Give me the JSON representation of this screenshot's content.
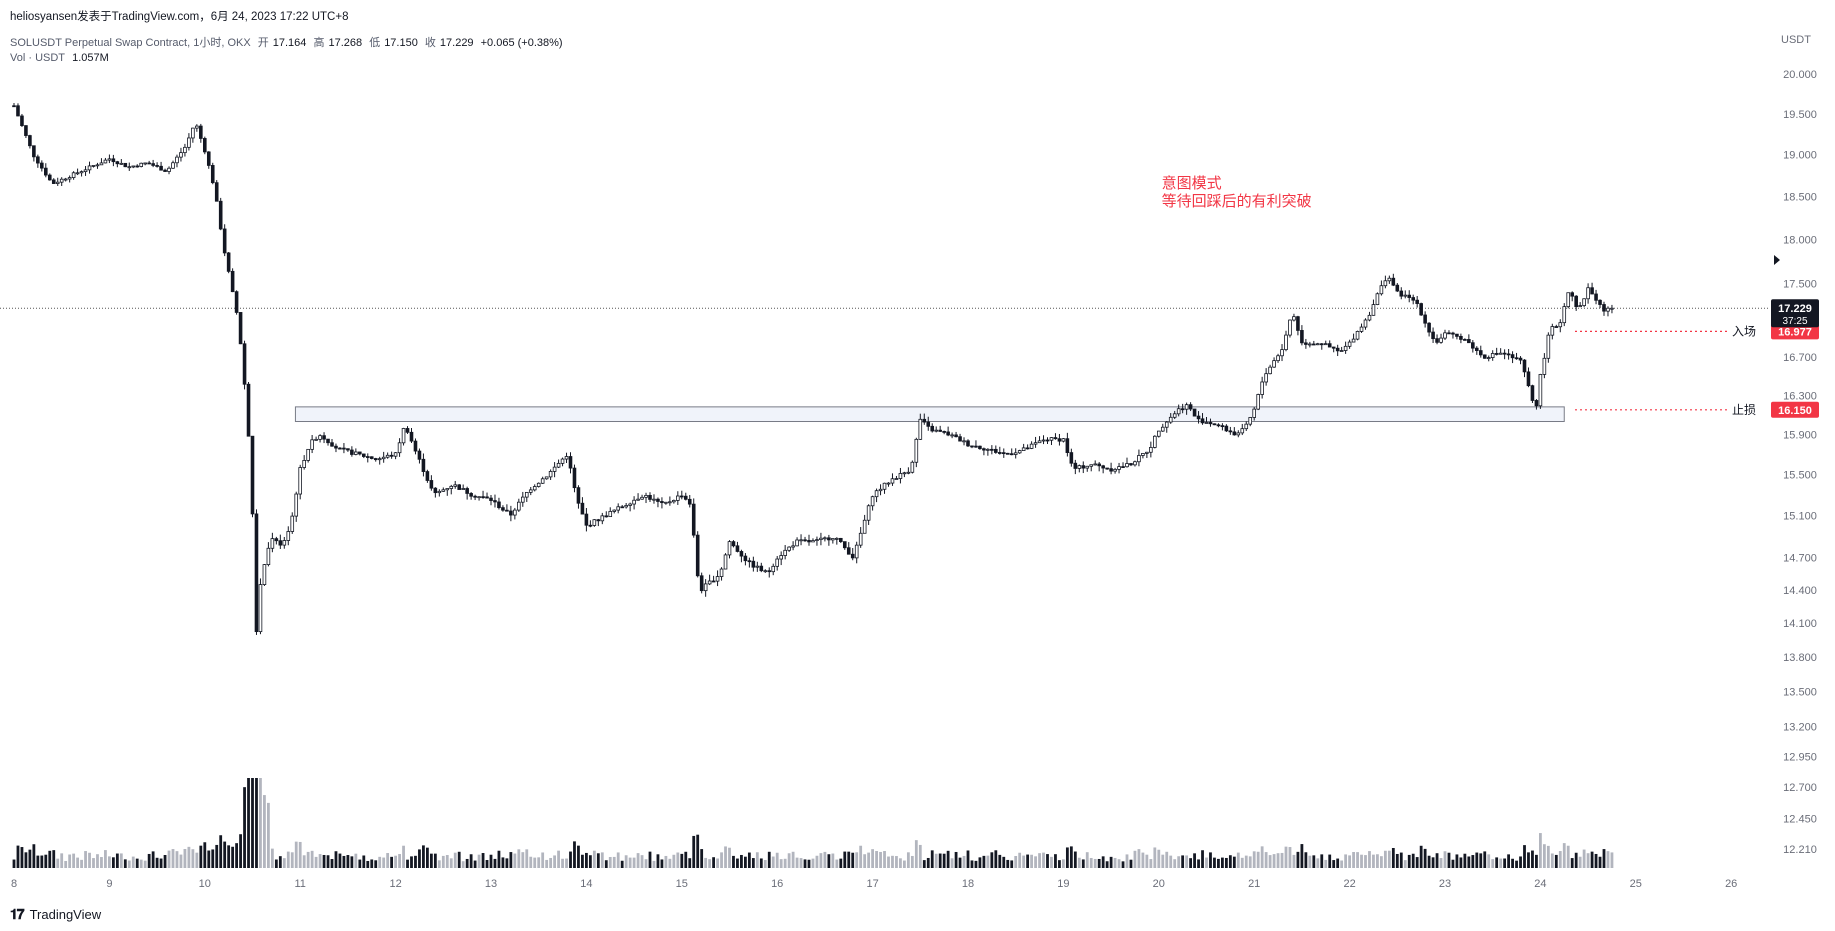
{
  "header": {
    "publisher": "heliosyansen发表于TradingView.com，6月 24, 2023 17:22 UTC+8",
    "symbol_line": "SOLUSDT Perpetual Swap Contract, 1小时, OKX",
    "open_label": "开",
    "open": "17.164",
    "high_label": "高",
    "high": "17.268",
    "low_label": "低",
    "low": "17.150",
    "close_label": "收",
    "close": "17.229",
    "change": "+0.065 (+0.38%)",
    "vol_label": "Vol · USDT",
    "vol_value": "1.057M"
  },
  "currency": "USDT",
  "footer": {
    "logo_mark": "𝟏𝟕",
    "logo_text": "TradingView"
  },
  "colors": {
    "candle": "#131722",
    "volume_up": "#b2b5be",
    "volume_down": "#131722",
    "annotation": "#f23645",
    "zone_fill": "#f0f3fa",
    "zone_border": "#787b86",
    "last_price_bg": "#131722",
    "level_bg": "#f23645"
  },
  "chart_data": {
    "type": "candlestick",
    "price_scale": {
      "ticks": [
        "20.000",
        "19.500",
        "19.000",
        "18.500",
        "18.000",
        "17.500",
        "16.700",
        "16.300",
        "15.900",
        "15.500",
        "15.100",
        "14.700",
        "14.400",
        "14.100",
        "13.800",
        "13.500",
        "13.200",
        "12.950",
        "12.700",
        "12.450",
        "12.210"
      ],
      "log": true
    },
    "time_ticks": [
      "8",
      "9",
      "10",
      "11",
      "12",
      "13",
      "14",
      "15",
      "16",
      "17",
      "18",
      "19",
      "20",
      "21",
      "22",
      "23",
      "24",
      "25",
      "26"
    ],
    "last_price": "17.229",
    "countdown": "37:25",
    "levels": [
      {
        "label": "入场",
        "price": "16.977",
        "value": 16.977
      },
      {
        "label": "止损",
        "price": "16.150",
        "value": 16.15
      }
    ],
    "zone": {
      "top": 16.18,
      "bottom": 16.03,
      "from_day": 10.95,
      "to_day": 24.25
    },
    "annotation": {
      "line1": "意图模式",
      "line2": "等待回踩后的有利突破",
      "day": 20.03,
      "price": 18.6
    },
    "price_path": [
      [
        8.0,
        19.6
      ],
      [
        8.2,
        19.0
      ],
      [
        8.4,
        18.65
      ],
      [
        8.6,
        18.75
      ],
      [
        8.8,
        18.85
      ],
      [
        9.0,
        18.95
      ],
      [
        9.2,
        18.85
      ],
      [
        9.4,
        18.9
      ],
      [
        9.6,
        18.8
      ],
      [
        9.8,
        19.1
      ],
      [
        9.9,
        19.4
      ],
      [
        10.0,
        19.05
      ],
      [
        10.1,
        18.6
      ],
      [
        10.2,
        17.9
      ],
      [
        10.3,
        17.35
      ],
      [
        10.35,
        17.1
      ],
      [
        10.4,
        16.6
      ],
      [
        10.45,
        16.05
      ],
      [
        10.5,
        15.1
      ],
      [
        10.52,
        13.6
      ],
      [
        10.55,
        14.2
      ],
      [
        10.6,
        14.55
      ],
      [
        10.7,
        14.9
      ],
      [
        10.8,
        14.8
      ],
      [
        10.9,
        15.0
      ],
      [
        11.0,
        15.55
      ],
      [
        11.1,
        15.8
      ],
      [
        11.2,
        15.9
      ],
      [
        11.4,
        15.75
      ],
      [
        11.6,
        15.7
      ],
      [
        11.8,
        15.65
      ],
      [
        12.0,
        15.7
      ],
      [
        12.1,
        16.0
      ],
      [
        12.2,
        15.75
      ],
      [
        12.4,
        15.3
      ],
      [
        12.6,
        15.4
      ],
      [
        12.8,
        15.3
      ],
      [
        13.0,
        15.25
      ],
      [
        13.2,
        15.1
      ],
      [
        13.4,
        15.35
      ],
      [
        13.6,
        15.5
      ],
      [
        13.8,
        15.7
      ],
      [
        13.9,
        15.25
      ],
      [
        14.0,
        15.0
      ],
      [
        14.2,
        15.1
      ],
      [
        14.4,
        15.2
      ],
      [
        14.6,
        15.3
      ],
      [
        14.8,
        15.2
      ],
      [
        15.0,
        15.3
      ],
      [
        15.1,
        15.2
      ],
      [
        15.15,
        14.6
      ],
      [
        15.2,
        14.4
      ],
      [
        15.4,
        14.55
      ],
      [
        15.5,
        14.85
      ],
      [
        15.7,
        14.65
      ],
      [
        15.9,
        14.55
      ],
      [
        16.0,
        14.7
      ],
      [
        16.2,
        14.85
      ],
      [
        16.4,
        14.85
      ],
      [
        16.6,
        14.9
      ],
      [
        16.8,
        14.7
      ],
      [
        16.9,
        15.0
      ],
      [
        17.0,
        15.3
      ],
      [
        17.2,
        15.45
      ],
      [
        17.4,
        15.55
      ],
      [
        17.5,
        16.05
      ],
      [
        17.6,
        15.95
      ],
      [
        17.8,
        15.9
      ],
      [
        18.0,
        15.8
      ],
      [
        18.2,
        15.75
      ],
      [
        18.4,
        15.7
      ],
      [
        18.6,
        15.75
      ],
      [
        18.8,
        15.85
      ],
      [
        19.0,
        15.85
      ],
      [
        19.1,
        15.55
      ],
      [
        19.3,
        15.6
      ],
      [
        19.5,
        15.55
      ],
      [
        19.7,
        15.6
      ],
      [
        19.9,
        15.75
      ],
      [
        20.0,
        15.95
      ],
      [
        20.2,
        16.15
      ],
      [
        20.3,
        16.2
      ],
      [
        20.4,
        16.05
      ],
      [
        20.6,
        16.0
      ],
      [
        20.8,
        15.9
      ],
      [
        20.9,
        15.95
      ],
      [
        21.0,
        16.15
      ],
      [
        21.1,
        16.5
      ],
      [
        21.3,
        16.8
      ],
      [
        21.4,
        17.2
      ],
      [
        21.5,
        16.85
      ],
      [
        21.7,
        16.85
      ],
      [
        21.9,
        16.75
      ],
      [
        22.0,
        16.85
      ],
      [
        22.1,
        17.0
      ],
      [
        22.2,
        17.15
      ],
      [
        22.3,
        17.4
      ],
      [
        22.4,
        17.6
      ],
      [
        22.5,
        17.4
      ],
      [
        22.7,
        17.3
      ],
      [
        22.8,
        17.05
      ],
      [
        22.9,
        16.85
      ],
      [
        23.0,
        16.95
      ],
      [
        23.2,
        16.9
      ],
      [
        23.4,
        16.7
      ],
      [
        23.6,
        16.75
      ],
      [
        23.8,
        16.65
      ],
      [
        23.9,
        16.3
      ],
      [
        23.95,
        16.15
      ],
      [
        24.0,
        16.5
      ],
      [
        24.1,
        17.0
      ],
      [
        24.2,
        17.05
      ],
      [
        24.3,
        17.45
      ],
      [
        24.4,
        17.2
      ],
      [
        24.5,
        17.45
      ],
      [
        24.6,
        17.3
      ],
      [
        24.7,
        17.15
      ],
      [
        24.75,
        17.229
      ]
    ]
  }
}
